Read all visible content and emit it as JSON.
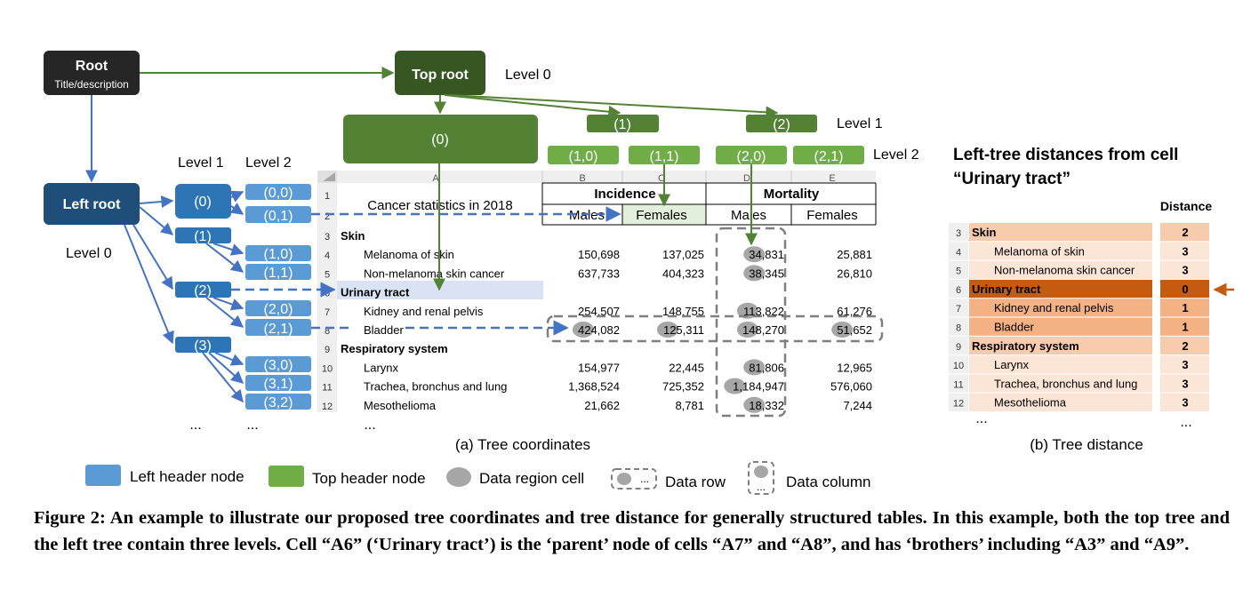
{
  "root": {
    "title": "Root",
    "subtitle": "Title/description"
  },
  "top_root": {
    "label": "Top root",
    "level": "Level 0"
  },
  "top_tree": {
    "level1": "Level 1",
    "level2": "Level 2",
    "nodes": [
      "(0)",
      "(1)",
      "(2)",
      "(1,0)",
      "(1,1)",
      "(2,0)",
      "(2,1)"
    ]
  },
  "left_root": {
    "label": "Left root",
    "level": "Level 0"
  },
  "left_tree": {
    "level1": "Level 1",
    "level2": "Level 2",
    "level1_nodes": [
      "(0)",
      "(1)",
      "(2)",
      "(3)"
    ],
    "level2_nodes": [
      "(0,0)",
      "(0,1)",
      "(1,0)",
      "(1,1)",
      "(2,0)",
      "(2,1)",
      "(3,0)",
      "(3,1)",
      "(3,2)"
    ],
    "ellipsis": [
      "...",
      "..."
    ]
  },
  "sheet": {
    "col_letters": [
      "A",
      "B",
      "C",
      "D",
      "E"
    ],
    "title_cell": "Cancer statistics in 2018",
    "incidence": "Incidence",
    "mortality": "Mortality",
    "sub_headers": [
      "Males",
      "Females",
      "Males",
      "Females"
    ],
    "rows": [
      {
        "num": "3",
        "label": "Skin",
        "bold": true,
        "values": [
          "",
          "",
          "",
          ""
        ]
      },
      {
        "num": "4",
        "label": "Melanoma of skin",
        "bold": false,
        "values": [
          "150,698",
          "137,025",
          "34,831",
          "25,881"
        ]
      },
      {
        "num": "5",
        "label": "Non-melanoma skin cancer",
        "bold": false,
        "values": [
          "637,733",
          "404,323",
          "38,345",
          "26,810"
        ]
      },
      {
        "num": "6",
        "label": "Urinary tract",
        "bold": true,
        "values": [
          "",
          "",
          "",
          ""
        ]
      },
      {
        "num": "7",
        "label": "Kidney and renal pelvis",
        "bold": false,
        "values": [
          "254,507",
          "148,755",
          "113,822",
          "61,276"
        ]
      },
      {
        "num": "8",
        "label": "Bladder",
        "bold": false,
        "values": [
          "424,082",
          "125,311",
          "148,270",
          "51,652"
        ]
      },
      {
        "num": "9",
        "label": "Respiratory system",
        "bold": true,
        "values": [
          "",
          "",
          "",
          ""
        ]
      },
      {
        "num": "10",
        "label": "Larynx",
        "bold": false,
        "values": [
          "154,977",
          "22,445",
          "81,806",
          "12,965"
        ]
      },
      {
        "num": "11",
        "label": "Trachea, bronchus and lung",
        "bold": false,
        "values": [
          "1,368,524",
          "725,352",
          "1,184,947",
          "576,060"
        ]
      },
      {
        "num": "12",
        "label": "Mesothelioma",
        "bold": false,
        "values": [
          "21,662",
          "8,781",
          "18,332",
          "7,244"
        ]
      }
    ],
    "ellipsis": "...",
    "caption": "(a) Tree coordinates"
  },
  "distance": {
    "title_line1": "Left-tree distances from cell",
    "title_line2": "“Urinary tract”",
    "header": "Distance",
    "rows": [
      {
        "num": "3",
        "label": "Skin",
        "bold": true,
        "distance": "2"
      },
      {
        "num": "4",
        "label": "Melanoma of skin",
        "bold": false,
        "distance": "3"
      },
      {
        "num": "5",
        "label": "Non-melanoma skin cancer",
        "bold": false,
        "distance": "3"
      },
      {
        "num": "6",
        "label": "Urinary tract",
        "bold": true,
        "distance": "0"
      },
      {
        "num": "7",
        "label": "Kidney and renal pelvis",
        "bold": false,
        "distance": "1"
      },
      {
        "num": "8",
        "label": "Bladder",
        "bold": false,
        "distance": "1"
      },
      {
        "num": "9",
        "label": "Respiratory system",
        "bold": true,
        "distance": "2"
      },
      {
        "num": "10",
        "label": "Larynx",
        "bold": false,
        "distance": "3"
      },
      {
        "num": "11",
        "label": "Trachea, bronchus and lung",
        "bold": false,
        "distance": "3"
      },
      {
        "num": "12",
        "label": "Mesothelioma",
        "bold": false,
        "distance": "3"
      }
    ],
    "ellipsis": [
      "...",
      "..."
    ],
    "caption": "(b) Tree distance"
  },
  "legend": {
    "left_header": "Left header node",
    "top_header": "Top header node",
    "data_cell": "Data region cell",
    "data_row": "Data row",
    "data_column": "Data column",
    "dots": "..."
  },
  "colors": {
    "dark_gray": "#262626",
    "dark_green": "#375623",
    "mid_green": "#548235",
    "light_green": "#70ad47",
    "dark_blue": "#1f4e79",
    "mid_blue": "#2e75b6",
    "light_blue": "#5b9bd5",
    "arrow_blue": "#4472c4",
    "highlight_blue": "#dae3f3",
    "highlight_green": "#e2efda",
    "orange_dark": "#c55a11",
    "orange_mid": "#f4b183",
    "orange_light": "#f8cbad",
    "orange_pale": "#fbe5d6"
  },
  "caption": "Figure 2: An example to illustrate our proposed tree coordinates and tree distance for generally structured tables. In this example, both the top tree and the left tree contain three levels. Cell “A6” (‘Urinary tract’) is the ‘parent’ node of cells “A7” and “A8”, and has ‘brothers’ including “A3” and “A9”."
}
